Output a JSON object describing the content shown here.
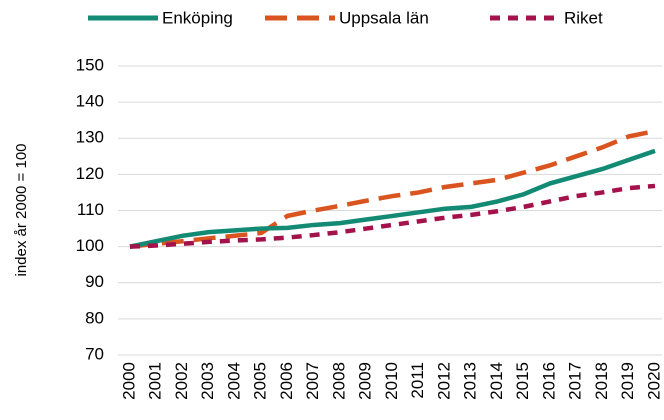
{
  "chart_data": {
    "type": "line",
    "y_label": "index år 2000 = 100",
    "categories": [
      "2000",
      "2001",
      "2002",
      "2003",
      "2004",
      "2005",
      "2006",
      "2007",
      "2008",
      "2009",
      "2010",
      "2011",
      "2012",
      "2013",
      "2014",
      "2015",
      "2016",
      "2017",
      "2018",
      "2019",
      "2020"
    ],
    "series": [
      {
        "name": "Enköping",
        "color": "#138a74",
        "dash": "solid",
        "values": [
          100,
          101.5,
          103,
          104,
          104.5,
          105,
          105.2,
          106,
          106.5,
          107.5,
          108.5,
          109.5,
          110.5,
          111,
          112.5,
          114.5,
          117.5,
          119.5,
          121.5,
          124,
          126.5
        ]
      },
      {
        "name": "Uppsala län",
        "color": "#d9541e",
        "dash": "long",
        "values": [
          100,
          100.8,
          101.5,
          102.3,
          103,
          103.8,
          108.5,
          110,
          111.3,
          112.7,
          114,
          115,
          116.5,
          117.5,
          118.5,
          120.5,
          122.5,
          125,
          127.5,
          130.5,
          132
        ]
      },
      {
        "name": "Riket",
        "color": "#a3124a",
        "dash": "short",
        "values": [
          100,
          100.3,
          100.8,
          101.3,
          101.7,
          102,
          102.5,
          103.2,
          104,
          105,
          106,
          107,
          108,
          108.8,
          109.8,
          111,
          112.5,
          114,
          115,
          116.2,
          116.8
        ]
      }
    ],
    "ylim": [
      70,
      150
    ],
    "yticks": [
      70,
      80,
      90,
      100,
      110,
      120,
      130,
      140,
      150
    ],
    "grid": true,
    "legend": "top"
  }
}
